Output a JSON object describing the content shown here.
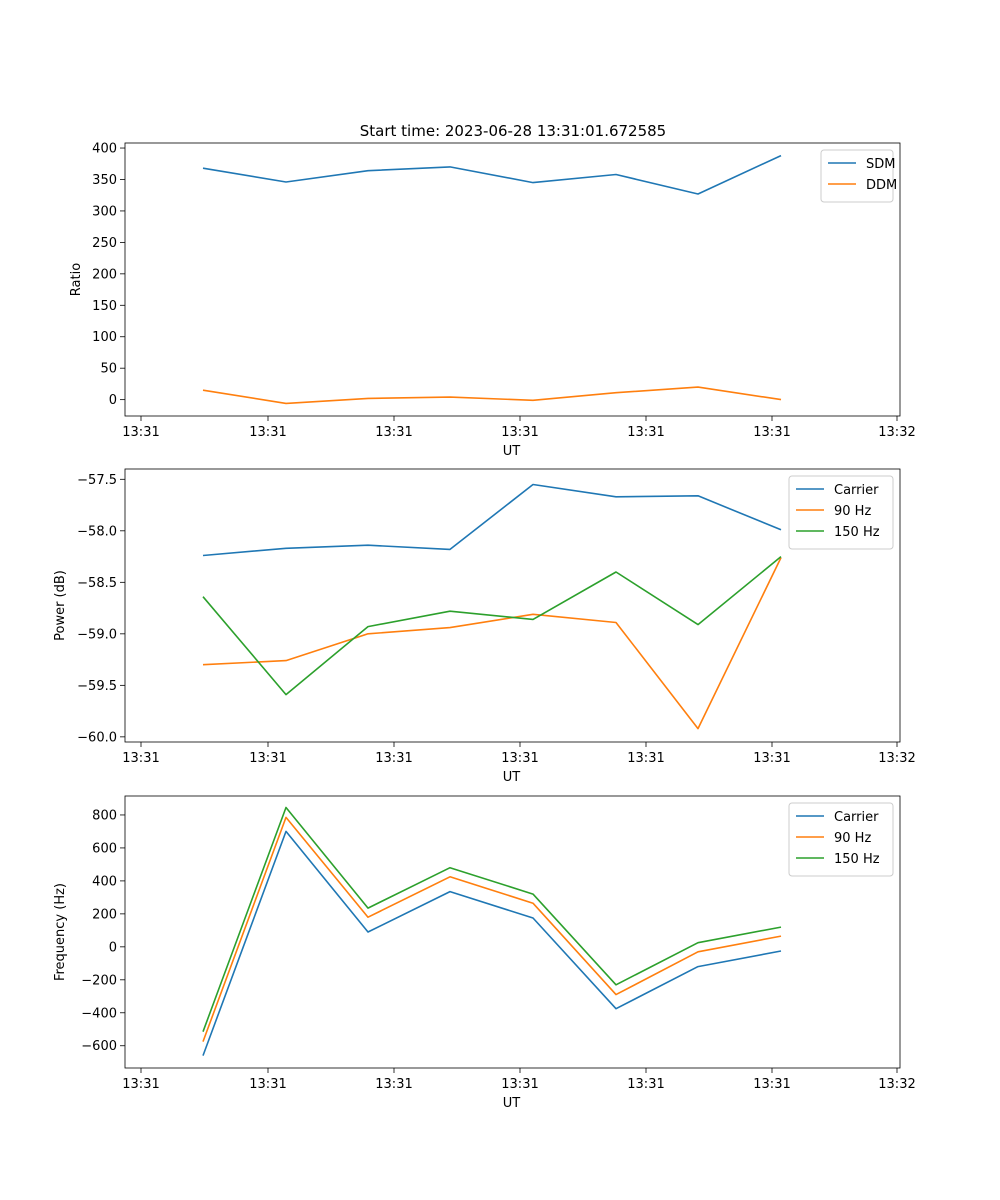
{
  "title": "Start time: 2023-06-28 13:31:01.672585",
  "colors": {
    "blue": "#1f77b4",
    "orange": "#ff7f0e",
    "green": "#2ca02c"
  },
  "chart_data": [
    {
      "type": "line",
      "xlabel": "UT",
      "ylabel": "Ratio",
      "x_tick_labels": [
        "13:31",
        "13:31",
        "13:31",
        "13:31",
        "13:31",
        "13:31",
        "13:32"
      ],
      "yticks": [
        0,
        50,
        100,
        150,
        200,
        250,
        300,
        350,
        400
      ],
      "ylim": [
        -26,
        408
      ],
      "legend": "top-right",
      "series": [
        {
          "name": "SDM",
          "color": "#1f77b4",
          "values": [
            368,
            346,
            364,
            370,
            345,
            358,
            327,
            388
          ]
        },
        {
          "name": "DDM",
          "color": "#ff7f0e",
          "values": [
            15,
            -6,
            2,
            4,
            -1,
            11,
            20,
            0
          ]
        }
      ]
    },
    {
      "type": "line",
      "xlabel": "UT",
      "ylabel": "Power (dB)",
      "x_tick_labels": [
        "13:31",
        "13:31",
        "13:31",
        "13:31",
        "13:31",
        "13:31",
        "13:32"
      ],
      "yticks": [
        "-60.0",
        "-59.5",
        "-59.0",
        "-58.5",
        "-58.0",
        "-57.5"
      ],
      "ylim": [
        -60.05,
        -57.4
      ],
      "legend": "top-right",
      "series": [
        {
          "name": "Carrier",
          "color": "#1f77b4",
          "values": [
            -58.24,
            -58.17,
            -58.14,
            -58.18,
            -57.55,
            -57.67,
            -57.66,
            -57.99
          ]
        },
        {
          "name": "90 Hz",
          "color": "#ff7f0e",
          "values": [
            -59.3,
            -59.26,
            -59.0,
            -58.94,
            -58.81,
            -58.89,
            -59.92,
            -58.26
          ]
        },
        {
          "name": "150 Hz",
          "color": "#2ca02c",
          "values": [
            -58.64,
            -59.59,
            -58.93,
            -58.78,
            -58.86,
            -58.4,
            -58.91,
            -58.25
          ]
        }
      ]
    },
    {
      "type": "line",
      "xlabel": "UT",
      "ylabel": "Frequency (Hz)",
      "x_tick_labels": [
        "13:31",
        "13:31",
        "13:31",
        "13:31",
        "13:31",
        "13:31",
        "13:32"
      ],
      "yticks": [
        -600,
        -400,
        -200,
        0,
        200,
        400,
        600,
        800
      ],
      "ylim": [
        -735,
        915
      ],
      "legend": "top-right",
      "series": [
        {
          "name": "Carrier",
          "color": "#1f77b4",
          "values": [
            -660,
            700,
            90,
            335,
            175,
            -375,
            -120,
            -25
          ]
        },
        {
          "name": "90 Hz",
          "color": "#ff7f0e",
          "values": [
            -575,
            785,
            180,
            425,
            265,
            -290,
            -30,
            65
          ]
        },
        {
          "name": "150 Hz",
          "color": "#2ca02c",
          "values": [
            -515,
            845,
            235,
            480,
            320,
            -230,
            25,
            120
          ]
        }
      ]
    }
  ]
}
